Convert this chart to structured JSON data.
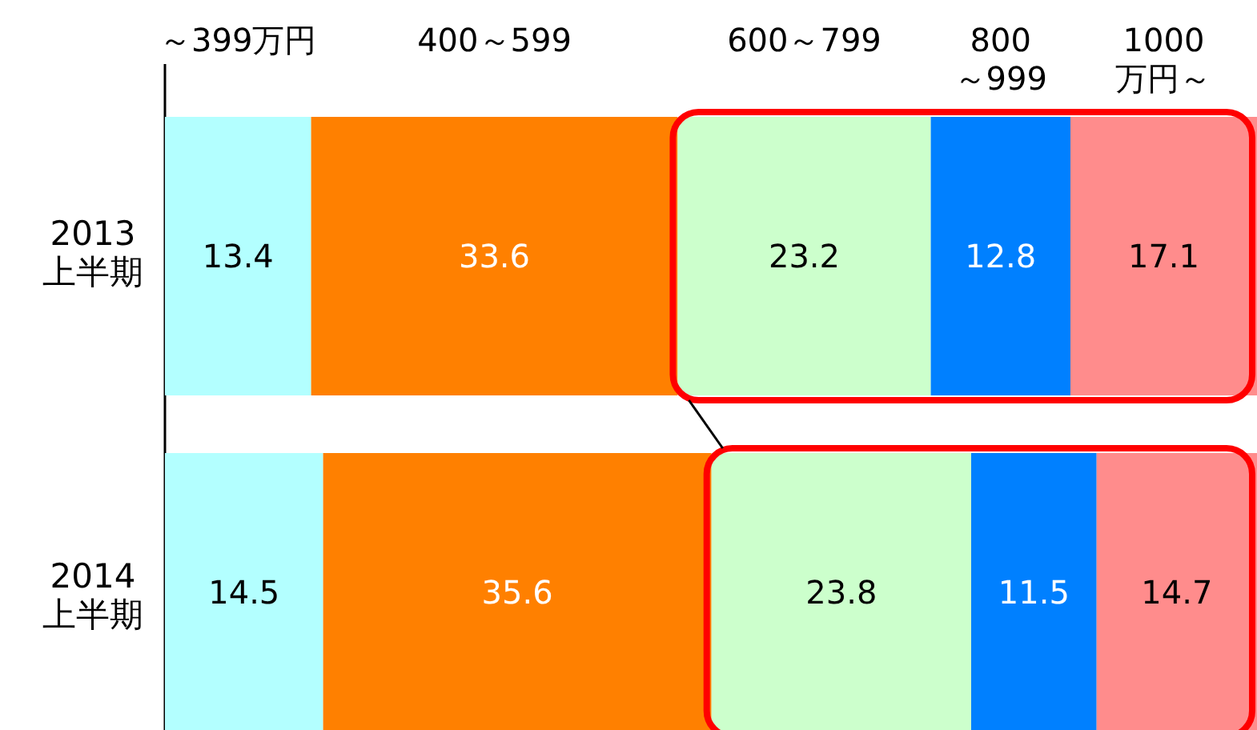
{
  "chart_data": {
    "type": "bar",
    "orientation": "horizontal",
    "stacked": true,
    "data_labels": true,
    "legend": "top",
    "categories": [
      "2013\n上半期",
      "2014\n上半期"
    ],
    "series": [
      {
        "name": "～399万円",
        "color": "#b3ffff",
        "values": [
          13.4,
          14.5
        ]
      },
      {
        "name": "400～599",
        "color": "#ff8000",
        "values": [
          33.6,
          35.6
        ]
      },
      {
        "name": "600～799",
        "color": "#ccffcc",
        "values": [
          23.2,
          23.8
        ]
      },
      {
        "name": "800\n～999",
        "color": "#0080ff",
        "values": [
          12.8,
          11.5
        ]
      },
      {
        "name": "1000\n万円～",
        "color": "#ff8c8c",
        "values": [
          17.1,
          14.7
        ]
      }
    ]
  }
}
